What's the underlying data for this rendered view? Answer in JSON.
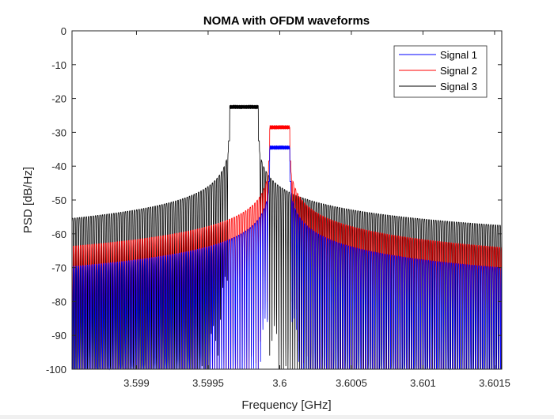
{
  "chart_data": {
    "type": "line",
    "title": "NOMA with OFDM waveforms",
    "xlabel": "Frequency [GHz]",
    "ylabel": "PSD [dB/Hz]",
    "xlim": [
      3.59855,
      3.60155
    ],
    "ylim": [
      -100,
      0
    ],
    "xticks": [
      3.599,
      3.5995,
      3.6,
      3.6005,
      3.601,
      3.6015
    ],
    "xtick_labels": [
      "3.599",
      "3.5995",
      "3.6",
      "3.6005",
      "3.601",
      "3.6015"
    ],
    "yticks": [
      0,
      -10,
      -20,
      -30,
      -40,
      -50,
      -60,
      -70,
      -80,
      -90,
      -100
    ],
    "ytick_labels": [
      "0",
      "-10",
      "-20",
      "-30",
      "-40",
      "-50",
      "-60",
      "-70",
      "-80",
      "-90",
      "-100"
    ],
    "grid": false,
    "legend_position": "top-right",
    "series": [
      {
        "name": "Signal 1",
        "color": "#0000ff",
        "band": [
          3.59993,
          3.60007
        ],
        "level": -34.5,
        "floor_at_edges": -70
      },
      {
        "name": "Signal 2",
        "color": "#ff0000",
        "band": [
          3.59993,
          3.60007
        ],
        "level": -28.5,
        "floor_at_edges": -64
      },
      {
        "name": "Signal 3",
        "color": "#000000",
        "band": [
          3.59965,
          3.59985
        ],
        "level": -22.5,
        "floor_at_edges": -57.5
      }
    ]
  }
}
